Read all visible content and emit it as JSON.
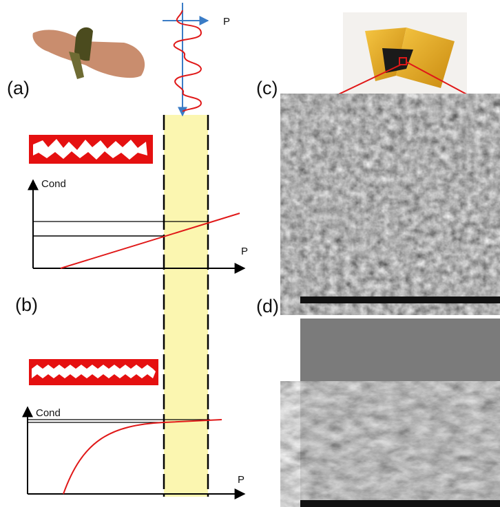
{
  "panels": {
    "a": "(a)",
    "b": "(b)",
    "c": "(c)",
    "d": "(d)"
  },
  "pressure_signal": {
    "axis_label": "P"
  },
  "graph_a": {
    "y_label": "Cond",
    "x_label": "P"
  },
  "graph_b": {
    "y_label": "Cond",
    "x_label": "P"
  }
}
